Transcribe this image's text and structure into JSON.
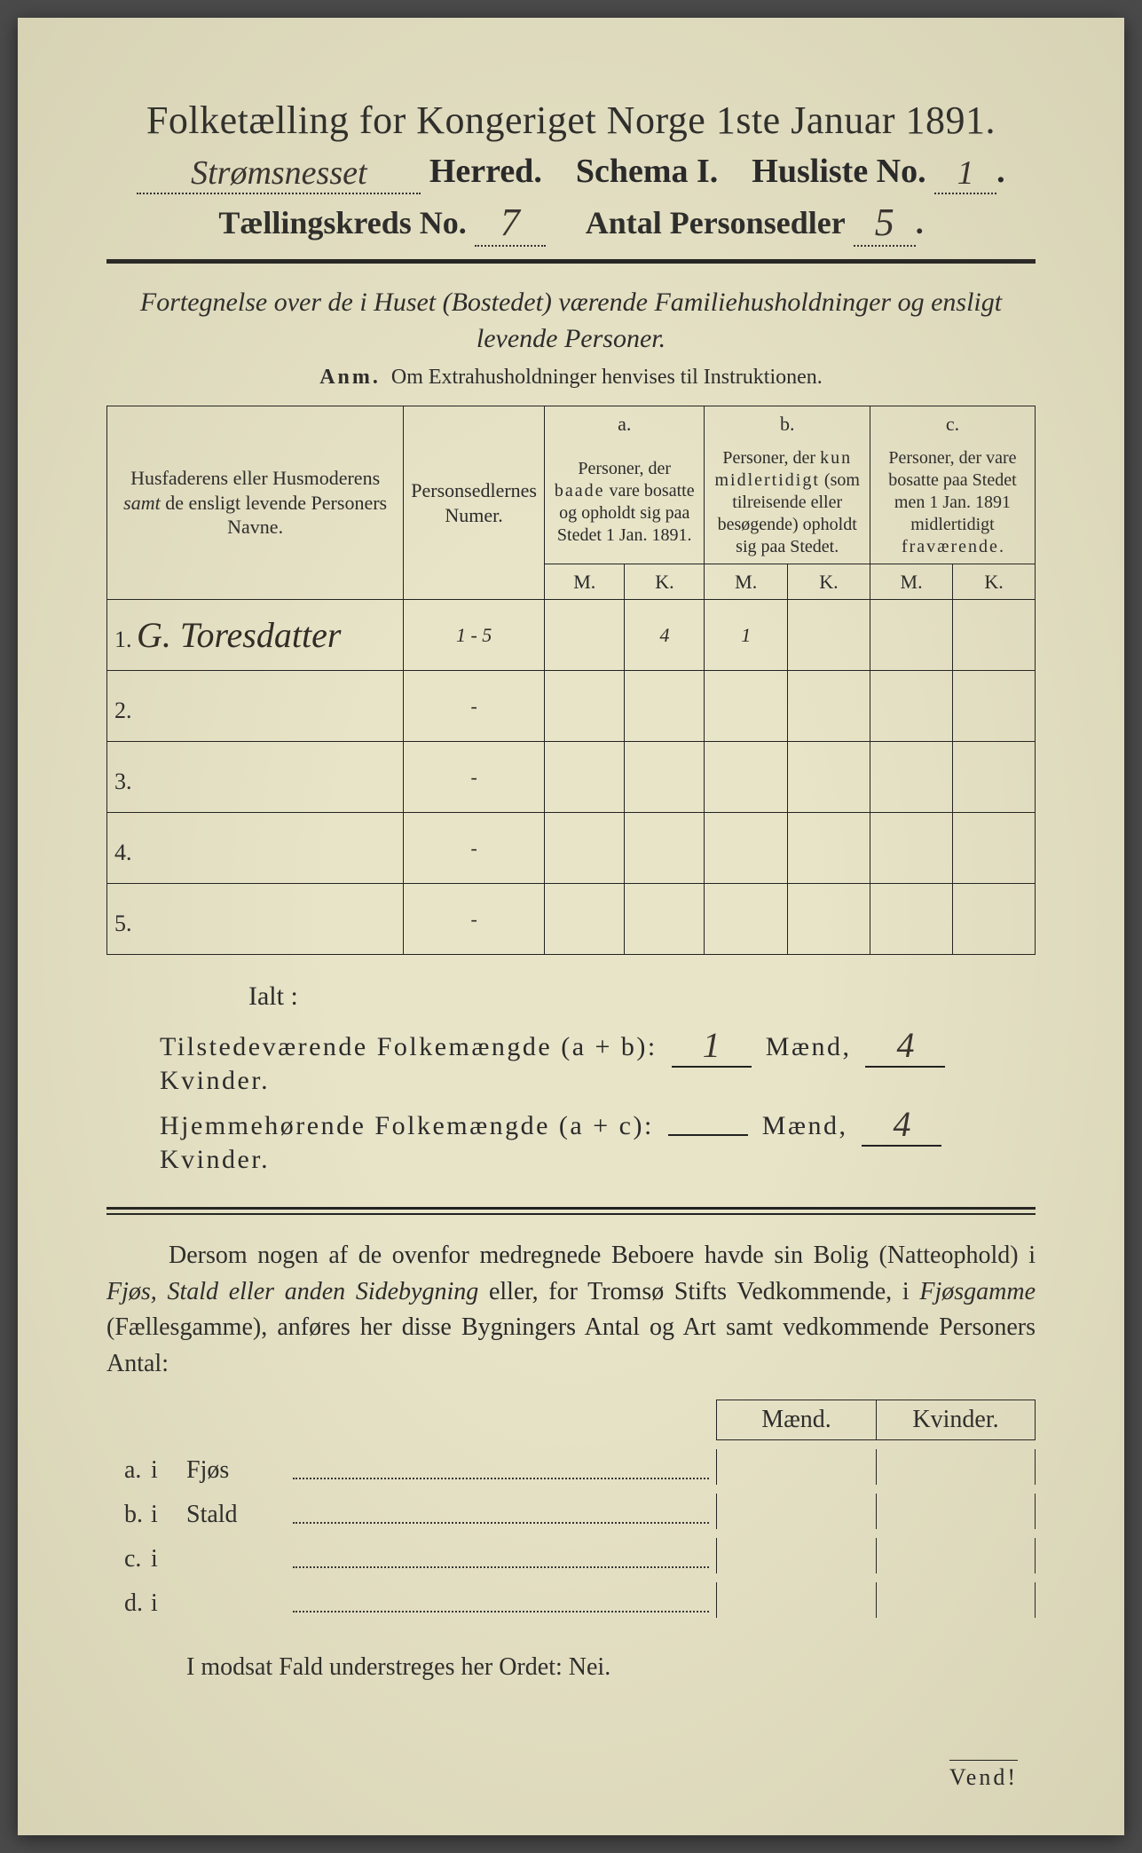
{
  "colors": {
    "paper": "#e8e4c8",
    "ink": "#2a2a2a",
    "handwriting": "#3a3530",
    "frame": "#4a4a4a"
  },
  "title": "Folketælling for Kongeriget Norge 1ste Januar 1891.",
  "line2": {
    "herred_handwritten": "Strømsnesset",
    "herred_label": "Herred.",
    "schema_label": "Schema I.",
    "husliste_label": "Husliste No.",
    "husliste_val": "1"
  },
  "line3": {
    "kreds_label": "Tællingskreds No.",
    "kreds_val": "7",
    "antal_label": "Antal Personsedler",
    "antal_val": "5"
  },
  "subtitle": "Fortegnelse over de i Huset (Bostedet) værende Familiehusholdninger og ensligt levende Personer.",
  "anm_lead": "Anm.",
  "anm_text": "Om Extrahusholdninger henvises til Instruktionen.",
  "columns": {
    "c1": "Husfaderens eller Husmoderens samt de ensligt levende Personers Navne.",
    "c1_em": "samt",
    "c2": "Personsedlernes Numer.",
    "a_label": "a.",
    "a_text": "Personer, der baade vare bosatte og opholdt sig paa Stedet 1 Jan. 1891.",
    "b_label": "b.",
    "b_text": "Personer, der kun midlertidigt (som tilreisende eller besøgende) opholdt sig paa Stedet.",
    "c_label": "c.",
    "c_text": "Personer, der vare bosatte paa Stedet men 1 Jan. 1891 midlertidigt fraværende.",
    "m": "M.",
    "k": "K."
  },
  "rows": [
    {
      "n": "1.",
      "name": "G. Toresdatter",
      "num": "1 - 5",
      "a_m": "",
      "a_k": "4",
      "b_m": "1",
      "b_k": "",
      "c_m": "",
      "c_k": ""
    },
    {
      "n": "2.",
      "name": "",
      "num": "-",
      "a_m": "",
      "a_k": "",
      "b_m": "",
      "b_k": "",
      "c_m": "",
      "c_k": ""
    },
    {
      "n": "3.",
      "name": "",
      "num": "-",
      "a_m": "",
      "a_k": "",
      "b_m": "",
      "b_k": "",
      "c_m": "",
      "c_k": ""
    },
    {
      "n": "4.",
      "name": "",
      "num": "-",
      "a_m": "",
      "a_k": "",
      "b_m": "",
      "b_k": "",
      "c_m": "",
      "c_k": ""
    },
    {
      "n": "5.",
      "name": "",
      "num": "-",
      "a_m": "",
      "a_k": "",
      "b_m": "",
      "b_k": "",
      "c_m": "",
      "c_k": ""
    }
  ],
  "ialt": "Ialt :",
  "totals": {
    "t1_label": "Tilstedeværende Folkemængde (a + b):",
    "t1_m": "1",
    "t1_k": "4",
    "maend": "Mænd,",
    "kvinder": "Kvinder.",
    "t2_label": "Hjemmehørende Folkemængde (a + c):",
    "t2_m": "",
    "t2_k": "4"
  },
  "para": {
    "p1a": "Dersom nogen af de ovenfor medregnede Beboere havde sin Bolig (Natteophold) i ",
    "p1b": "Fjøs, Stald eller anden Sidebygning",
    "p1c": " eller, for Tromsø Stifts Vedkommende, i ",
    "p1d": "Fjøsgamme",
    "p1e": " (Fællesgamme), anføres her disse Bygningers Antal og Art samt vedkommende Personers Antal:"
  },
  "mk": {
    "m": "Mænd.",
    "k": "Kvinder."
  },
  "bldg": [
    {
      "lab": "a.",
      "i": "i",
      "txt": "Fjøs"
    },
    {
      "lab": "b.",
      "i": "i",
      "txt": "Stald"
    },
    {
      "lab": "c.",
      "i": "i",
      "txt": ""
    },
    {
      "lab": "d.",
      "i": "i",
      "txt": ""
    }
  ],
  "nei": "I modsat Fald understreges her Ordet: Nei.",
  "vend": "Vend!"
}
